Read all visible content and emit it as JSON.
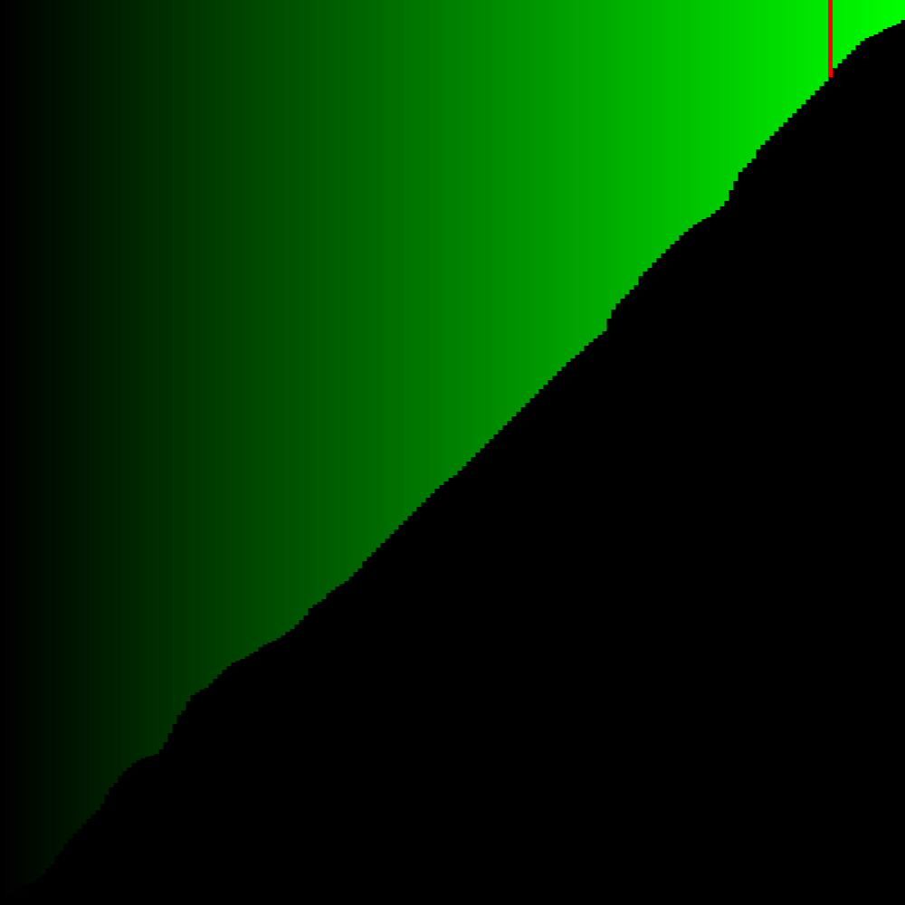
{
  "visualization": {
    "type": "sorted-bar-visualization",
    "bar_count": 200,
    "highlight_index": 183,
    "orientation": "bars-hang-from-top",
    "colors": {
      "background": "#000000",
      "bar_gradient_start": "#000000",
      "bar_gradient_end": "#00ff00",
      "highlight": "#ff0000"
    },
    "bar_heights_normalized": [
      0.995,
      0.994,
      0.99,
      0.985,
      0.978,
      0.978,
      0.976,
      0.975,
      0.97,
      0.966,
      0.959,
      0.955,
      0.945,
      0.94,
      0.932,
      0.926,
      0.921,
      0.916,
      0.91,
      0.905,
      0.9,
      0.895,
      0.888,
      0.878,
      0.87,
      0.865,
      0.857,
      0.852,
      0.848,
      0.843,
      0.84,
      0.838,
      0.836,
      0.835,
      0.833,
      0.828,
      0.82,
      0.81,
      0.8,
      0.79,
      0.785,
      0.775,
      0.768,
      0.765,
      0.762,
      0.76,
      0.755,
      0.75,
      0.745,
      0.74,
      0.736,
      0.732,
      0.73,
      0.728,
      0.725,
      0.722,
      0.72,
      0.715,
      0.712,
      0.71,
      0.708,
      0.705,
      0.702,
      0.698,
      0.695,
      0.69,
      0.685,
      0.68,
      0.672,
      0.668,
      0.665,
      0.662,
      0.655,
      0.652,
      0.648,
      0.645,
      0.642,
      0.637,
      0.632,
      0.628,
      0.62,
      0.615,
      0.61,
      0.605,
      0.6,
      0.595,
      0.59,
      0.585,
      0.58,
      0.575,
      0.57,
      0.565,
      0.56,
      0.555,
      0.55,
      0.545,
      0.54,
      0.536,
      0.532,
      0.528,
      0.525,
      0.52,
      0.515,
      0.51,
      0.505,
      0.5,
      0.495,
      0.49,
      0.485,
      0.48,
      0.475,
      0.47,
      0.465,
      0.46,
      0.455,
      0.45,
      0.445,
      0.44,
      0.435,
      0.43,
      0.425,
      0.42,
      0.415,
      0.41,
      0.405,
      0.4,
      0.396,
      0.392,
      0.388,
      0.382,
      0.378,
      0.374,
      0.37,
      0.366,
      0.352,
      0.342,
      0.335,
      0.33,
      0.325,
      0.32,
      0.315,
      0.305,
      0.3,
      0.296,
      0.29,
      0.285,
      0.28,
      0.275,
      0.27,
      0.266,
      0.26,
      0.256,
      0.252,
      0.248,
      0.245,
      0.242,
      0.24,
      0.236,
      0.232,
      0.228,
      0.222,
      0.21,
      0.2,
      0.19,
      0.185,
      0.18,
      0.175,
      0.165,
      0.16,
      0.155,
      0.15,
      0.145,
      0.14,
      0.135,
      0.13,
      0.125,
      0.12,
      0.115,
      0.11,
      0.105,
      0.1,
      0.095,
      0.09,
      0.085,
      0.075,
      0.07,
      0.065,
      0.06,
      0.055,
      0.05,
      0.045,
      0.042,
      0.04,
      0.038,
      0.035,
      0.032,
      0.03,
      0.028,
      0.026,
      0.022
    ]
  }
}
